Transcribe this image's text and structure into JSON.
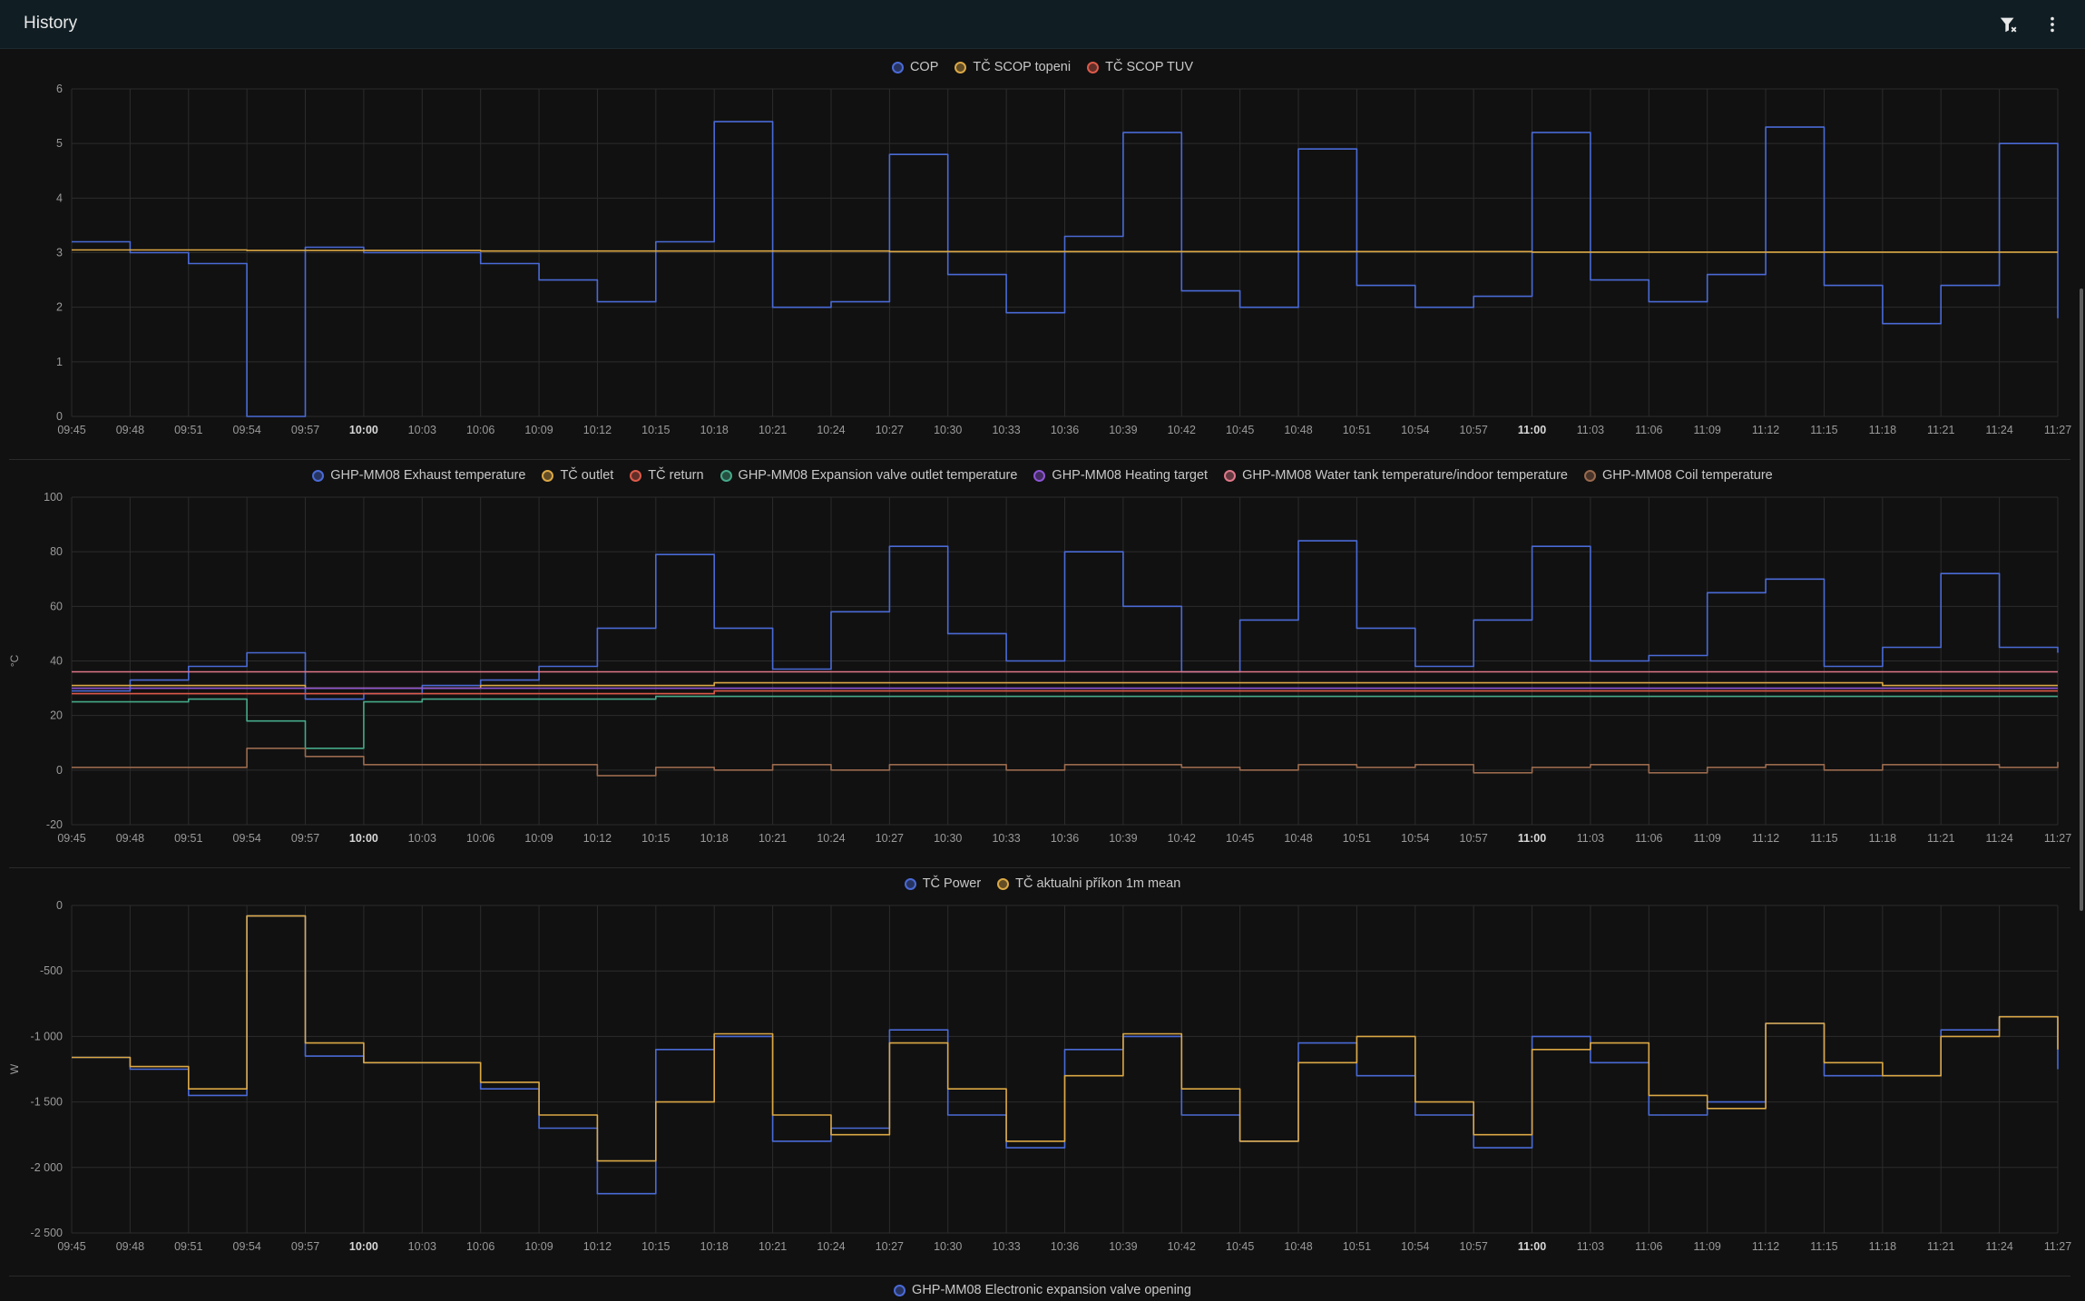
{
  "app": {
    "title": "History",
    "actions": [
      {
        "name": "clear-filter",
        "icon": "filter-remove-icon"
      },
      {
        "name": "more-options",
        "icon": "dots-vertical-icon"
      }
    ]
  },
  "colors": {
    "background": "#111111",
    "grid": "#2c2c2c",
    "tick": "#9a9a9a",
    "blue": "#4a6ad6",
    "yellow": "#dba845",
    "red": "#dd5a4a",
    "teal": "#45a98a",
    "purple": "#8e55d6",
    "pink": "#e0788a",
    "brown": "#9a6a4e"
  },
  "time_ticks": [
    "09:45",
    "09:48",
    "09:51",
    "09:54",
    "09:57",
    "10:00",
    "10:03",
    "10:06",
    "10:09",
    "10:12",
    "10:15",
    "10:18",
    "10:21",
    "10:24",
    "10:27",
    "10:30",
    "10:33",
    "10:36",
    "10:39",
    "10:42",
    "10:45",
    "10:48",
    "10:51",
    "10:54",
    "10:57",
    "11:00",
    "11:03",
    "11:06",
    "11:09",
    "11:12",
    "11:15",
    "11:18",
    "11:21",
    "11:24",
    "11:27"
  ],
  "bold_ticks": [
    "10:00",
    "11:00"
  ],
  "charts": {
    "cop": {
      "legend": [
        {
          "label": "COP",
          "color": "#4a6ad6"
        },
        {
          "label": "TČ SCOP topeni",
          "color": "#dba845"
        },
        {
          "label": "TČ SCOP TUV",
          "color": "#dd5a4a"
        }
      ],
      "y_ticks": [
        "0",
        "1",
        "2",
        "3",
        "4",
        "5",
        "6"
      ]
    },
    "temps": {
      "legend": [
        {
          "label": "GHP-MM08 Exhaust temperature",
          "color": "#4a6ad6"
        },
        {
          "label": "TČ outlet",
          "color": "#dba845"
        },
        {
          "label": "TČ return",
          "color": "#dd5a4a"
        },
        {
          "label": "GHP-MM08 Expansion valve outlet temperature",
          "color": "#45a98a"
        },
        {
          "label": "GHP-MM08 Heating target",
          "color": "#8e55d6"
        },
        {
          "label": "GHP-MM08 Water tank temperature/indoor temperature",
          "color": "#e0788a"
        },
        {
          "label": "GHP-MM08 Coil temperature",
          "color": "#9a6a4e"
        }
      ],
      "y_ticks": [
        "-20",
        "0",
        "20",
        "40",
        "60",
        "80",
        "100"
      ],
      "unit": "°C"
    },
    "power": {
      "legend": [
        {
          "label": "TČ Power",
          "color": "#4a6ad6"
        },
        {
          "label": "TČ aktualni příkon 1m mean",
          "color": "#dba845"
        }
      ],
      "y_ticks": [
        "-2 500",
        "-2 000",
        "-1 500",
        "-1 000",
        "-500",
        "0"
      ],
      "unit": "W"
    },
    "valve": {
      "legend": [
        {
          "label": "GHP-MM08 Electronic expansion valve opening",
          "color": "#4a6ad6"
        }
      ]
    }
  },
  "chart_data": [
    {
      "type": "line",
      "x": [
        "09:45",
        "09:48",
        "09:51",
        "09:54",
        "09:57",
        "10:00",
        "10:03",
        "10:06",
        "10:09",
        "10:12",
        "10:15",
        "10:18",
        "10:21",
        "10:24",
        "10:27",
        "10:30",
        "10:33",
        "10:36",
        "10:39",
        "10:42",
        "10:45",
        "10:48",
        "10:51",
        "10:54",
        "10:57",
        "11:00",
        "11:03",
        "11:06",
        "11:09",
        "11:12",
        "11:15",
        "11:18",
        "11:21",
        "11:24",
        "11:27"
      ],
      "ylim": [
        0,
        6
      ],
      "series": [
        {
          "name": "COP",
          "values": [
            3.2,
            3.0,
            2.8,
            0,
            3.1,
            3.0,
            3.0,
            2.8,
            2.5,
            2.1,
            3.2,
            5.4,
            2.0,
            2.1,
            4.8,
            2.6,
            1.9,
            3.3,
            5.2,
            2.3,
            2.0,
            4.9,
            2.4,
            2.0,
            2.2,
            5.2,
            2.5,
            2.1,
            2.6,
            5.3,
            2.4,
            1.7,
            2.4,
            5.0,
            1.8
          ]
        },
        {
          "name": "TČ SCOP topeni",
          "values": [
            3.05,
            3.05,
            3.05,
            3.04,
            3.04,
            3.04,
            3.04,
            3.03,
            3.03,
            3.03,
            3.03,
            3.03,
            3.03,
            3.03,
            3.02,
            3.02,
            3.02,
            3.02,
            3.02,
            3.02,
            3.02,
            3.02,
            3.02,
            3.02,
            3.02,
            3.01,
            3.01,
            3.01,
            3.01,
            3.01,
            3.01,
            3.01,
            3.01,
            3.01,
            3.01
          ]
        }
      ]
    },
    {
      "type": "line",
      "x": [
        "09:45",
        "09:48",
        "09:51",
        "09:54",
        "09:57",
        "10:00",
        "10:03",
        "10:06",
        "10:09",
        "10:12",
        "10:15",
        "10:18",
        "10:21",
        "10:24",
        "10:27",
        "10:30",
        "10:33",
        "10:36",
        "10:39",
        "10:42",
        "10:45",
        "10:48",
        "10:51",
        "10:54",
        "10:57",
        "11:00",
        "11:03",
        "11:06",
        "11:09",
        "11:12",
        "11:15",
        "11:18",
        "11:21",
        "11:24",
        "11:27"
      ],
      "ylim": [
        -20,
        100
      ],
      "ylabel": "°C",
      "series": [
        {
          "name": "GHP-MM08 Exhaust temperature",
          "values": [
            29,
            33,
            38,
            43,
            26,
            28,
            31,
            33,
            38,
            52,
            79,
            52,
            37,
            58,
            82,
            50,
            40,
            80,
            60,
            36,
            55,
            84,
            52,
            38,
            55,
            82,
            40,
            42,
            65,
            70,
            38,
            45,
            72,
            45,
            43
          ]
        },
        {
          "name": "TČ outlet",
          "values": [
            31,
            31,
            31,
            31,
            30,
            30,
            30,
            31,
            31,
            31,
            31,
            32,
            32,
            32,
            32,
            32,
            32,
            32,
            32,
            32,
            32,
            32,
            32,
            32,
            32,
            32,
            32,
            32,
            32,
            32,
            32,
            31,
            31,
            31,
            31
          ]
        },
        {
          "name": "TČ return",
          "values": [
            28,
            28,
            28,
            28,
            28,
            28,
            28,
            28,
            28,
            28,
            28,
            29,
            29,
            29,
            29,
            29,
            29,
            29,
            29,
            29,
            29,
            29,
            29,
            29,
            29,
            29,
            29,
            29,
            29,
            29,
            29,
            29,
            29,
            29,
            29
          ]
        },
        {
          "name": "GHP-MM08 Expansion valve outlet temperature",
          "values": [
            25,
            25,
            26,
            18,
            8,
            25,
            26,
            26,
            26,
            26,
            27,
            27,
            27,
            27,
            27,
            27,
            27,
            27,
            27,
            27,
            27,
            27,
            27,
            27,
            27,
            27,
            27,
            27,
            27,
            27,
            27,
            27,
            27,
            27,
            27
          ]
        },
        {
          "name": "GHP-MM08 Heating target",
          "values": [
            30,
            30,
            30,
            30,
            30,
            30,
            30,
            30,
            30,
            30,
            30,
            30,
            30,
            30,
            30,
            30,
            30,
            30,
            30,
            30,
            30,
            30,
            30,
            30,
            30,
            30,
            30,
            30,
            30,
            30,
            30,
            30,
            30,
            30,
            30
          ]
        },
        {
          "name": "GHP-MM08 Water tank temperature/indoor temperature",
          "values": [
            36,
            36,
            36,
            36,
            36,
            36,
            36,
            36,
            36,
            36,
            36,
            36,
            36,
            36,
            36,
            36,
            36,
            36,
            36,
            36,
            36,
            36,
            36,
            36,
            36,
            36,
            36,
            36,
            36,
            36,
            36,
            36,
            36,
            36,
            36
          ]
        },
        {
          "name": "GHP-MM08 Coil temperature",
          "values": [
            1,
            1,
            1,
            8,
            5,
            2,
            2,
            2,
            2,
            -2,
            1,
            0,
            2,
            0,
            2,
            2,
            0,
            2,
            2,
            1,
            0,
            2,
            1,
            2,
            -1,
            1,
            2,
            -1,
            1,
            2,
            0,
            2,
            2,
            1,
            3
          ]
        }
      ]
    },
    {
      "type": "line",
      "x": [
        "09:45",
        "09:48",
        "09:51",
        "09:54",
        "09:57",
        "10:00",
        "10:03",
        "10:06",
        "10:09",
        "10:12",
        "10:15",
        "10:18",
        "10:21",
        "10:24",
        "10:27",
        "10:30",
        "10:33",
        "10:36",
        "10:39",
        "10:42",
        "10:45",
        "10:48",
        "10:51",
        "10:54",
        "10:57",
        "11:00",
        "11:03",
        "11:06",
        "11:09",
        "11:12",
        "11:15",
        "11:18",
        "11:21",
        "11:24",
        "11:27"
      ],
      "ylim": [
        -2500,
        0
      ],
      "ylabel": "W",
      "series": [
        {
          "name": "TČ Power",
          "values": [
            -1160,
            -1250,
            -1450,
            -80,
            -1150,
            -1200,
            -1200,
            -1400,
            -1700,
            -2200,
            -1100,
            -1000,
            -1800,
            -1700,
            -950,
            -1600,
            -1850,
            -1100,
            -1000,
            -1600,
            -1800,
            -1050,
            -1300,
            -1600,
            -1850,
            -1000,
            -1200,
            -1600,
            -1500,
            -900,
            -1300,
            -1300,
            -950,
            -850,
            -1250
          ]
        },
        {
          "name": "TČ aktualni příkon 1m mean",
          "values": [
            -1160,
            -1230,
            -1400,
            -80,
            -1050,
            -1200,
            -1200,
            -1350,
            -1600,
            -1950,
            -1500,
            -980,
            -1600,
            -1750,
            -1050,
            -1400,
            -1800,
            -1300,
            -980,
            -1400,
            -1800,
            -1200,
            -1000,
            -1500,
            -1750,
            -1100,
            -1050,
            -1450,
            -1550,
            -900,
            -1200,
            -1300,
            -1000,
            -850,
            -1100
          ]
        }
      ]
    }
  ]
}
